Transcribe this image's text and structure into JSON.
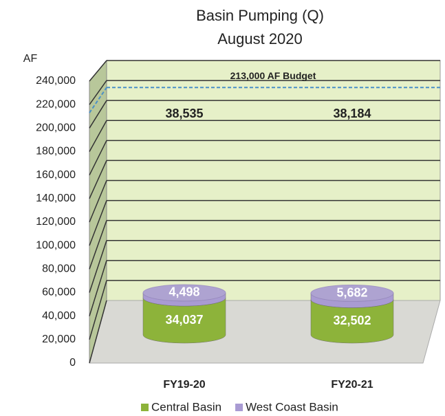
{
  "chart_data": {
    "type": "bar3d_cylinder_stacked",
    "title": "Basin Pumping (Q)",
    "subtitle": "August 2020",
    "y_label": "AF",
    "categories": [
      "FY19-20",
      "FY20-21"
    ],
    "series": [
      {
        "name": "Central Basin",
        "color": "#8db33a",
        "values": [
          34037,
          32502
        ]
      },
      {
        "name": "West Coast Basin",
        "color": "#a99bd3",
        "values": [
          4498,
          5682
        ]
      }
    ],
    "value_labels": [
      [
        "34,037",
        "32,502"
      ],
      [
        "4,498",
        "5,682"
      ]
    ],
    "total_labels": [
      "38,535",
      "38,184"
    ],
    "budget": {
      "value": 213000,
      "label": "213,000 AF Budget",
      "color": "#4a90c8"
    },
    "ylim": [
      0,
      240000
    ],
    "yticks": [
      0,
      {
        "value": 20000,
        "label": "20,000"
      },
      {
        "value": 40000,
        "label": "40,000"
      },
      {
        "value": 60000,
        "label": "60,000"
      },
      {
        "value": 80000,
        "label": "80,000"
      },
      {
        "value": 100000,
        "label": "100,000"
      },
      {
        "value": 120000,
        "label": "120,000"
      },
      {
        "value": 140000,
        "label": "140,000"
      },
      {
        "value": 160000,
        "label": "160,000"
      },
      {
        "value": 180000,
        "label": "180,000"
      },
      {
        "value": 200000,
        "label": "200,000"
      },
      {
        "value": 220000,
        "label": "220,000"
      },
      {
        "value": 240000,
        "label": "240,000"
      }
    ],
    "grid": true,
    "legend": "bottom"
  }
}
